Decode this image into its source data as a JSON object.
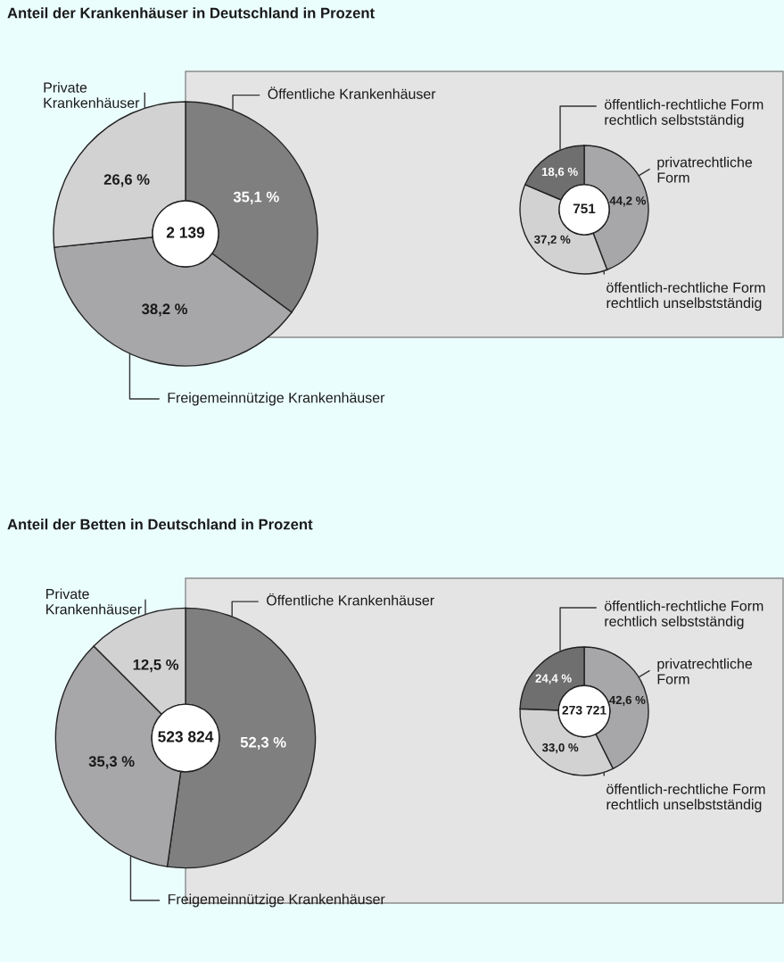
{
  "chart_data": [
    {
      "type": "donut",
      "title": "Anteil der Krankenhäuser in Deutschland in Prozent",
      "categories": [
        "Öffentliche Krankenhäuser",
        "Freigemeinnützige Krankenhäuser",
        "Private\nKrankenhäuser"
      ],
      "values": [
        35.1,
        38.2,
        26.6
      ],
      "colors": [
        "#7f7f80",
        "#a7a7a9",
        "#d2d2d3"
      ],
      "value_labels": [
        "35,1 %",
        "38,2 %",
        "26,6 %"
      ],
      "annotations": [
        "2 139"
      ]
    },
    {
      "type": "donut",
      "categories": [
        "privatrechtliche\nForm",
        "öffentlich-rechtliche Form\nrechtlich unselbstständig",
        "öffentlich-rechtliche Form\nrechtlich selbstständig"
      ],
      "values": [
        44.2,
        37.2,
        18.6
      ],
      "colors": [
        "#a7a7a9",
        "#d2d2d3",
        "#6f6f70"
      ],
      "value_labels": [
        "44,2 %",
        "37,2 %",
        "18,6 %"
      ],
      "annotations": [
        "751"
      ]
    },
    {
      "type": "donut",
      "title": "Anteil der Betten in Deutschland in Prozent",
      "categories": [
        "Öffentliche Krankenhäuser",
        "Freigemeinnützige Krankenhäuser",
        "Private\nKrankenhäuser"
      ],
      "values": [
        52.3,
        35.3,
        12.5
      ],
      "colors": [
        "#7f7f80",
        "#a7a7a9",
        "#d2d2d3"
      ],
      "value_labels": [
        "52,3 %",
        "35,3 %",
        "12,5 %"
      ],
      "annotations": [
        "523 824"
      ]
    },
    {
      "type": "donut",
      "categories": [
        "privatrechtliche\nForm",
        "öffentlich-rechtliche Form\nrechtlich unselbstständig",
        "öffentlich-rechtliche Form\nrechtlich selbstständig"
      ],
      "values": [
        42.6,
        33.0,
        24.4
      ],
      "colors": [
        "#a7a7a9",
        "#d2d2d3",
        "#6f6f70"
      ],
      "value_labels": [
        "42,6 %",
        "33,0 %",
        "24,4 %"
      ],
      "annotations": [
        "273 721"
      ]
    }
  ]
}
